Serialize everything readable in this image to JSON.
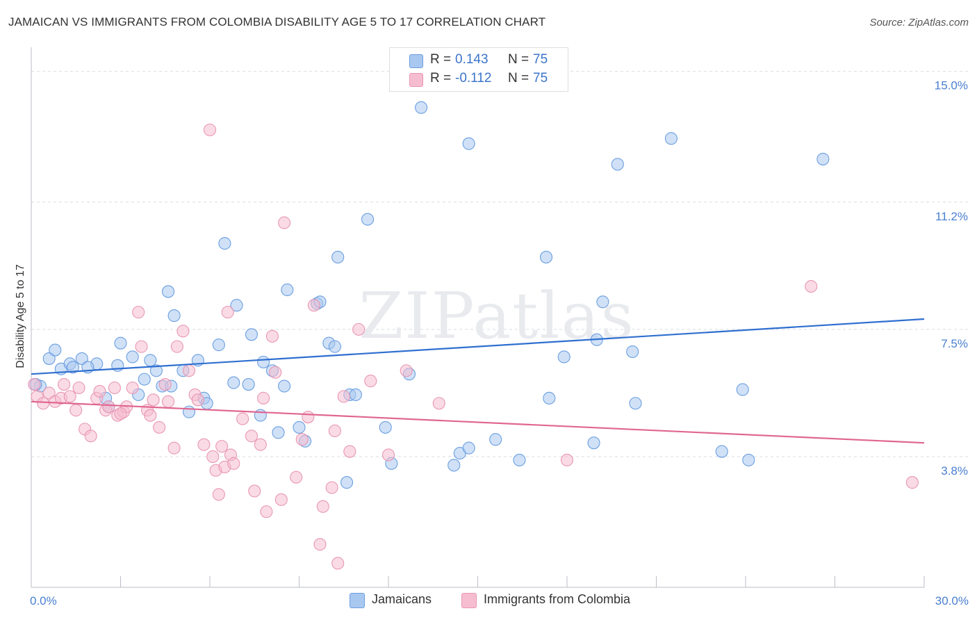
{
  "title": "JAMAICAN VS IMMIGRANTS FROM COLOMBIA DISABILITY AGE 5 TO 17 CORRELATION CHART",
  "source": "Source: ZipAtlas.com",
  "watermark": "ZIPatlas",
  "legend": {
    "rows": [
      {
        "r_label": "R =",
        "r_value": "0.143",
        "n_label": "N =",
        "n_value": "75",
        "color": "#a9c8f0",
        "border": "#6a9ee0"
      },
      {
        "r_label": "R =",
        "r_value": "-0.112",
        "n_label": "N =",
        "n_value": "75",
        "color": "#f6bdd0",
        "border": "#e896b3"
      }
    ]
  },
  "bottom_legend": [
    {
      "label": "Jamaicans",
      "color": "#a9c8f0",
      "border": "#6a9ee0"
    },
    {
      "label": "Immigrants from Colombia",
      "color": "#f6bdd0",
      "border": "#e896b3"
    }
  ],
  "chart_data": {
    "type": "scatter",
    "ylabel": "Disability Age 5 to 17",
    "xlim": [
      0,
      30
    ],
    "ylim": [
      0,
      15.5
    ],
    "x_tick_labels": [
      {
        "value": 0,
        "label": "0.0%"
      },
      {
        "value": 30,
        "label": "30.0%"
      }
    ],
    "y_tick_labels": [
      {
        "value": 15.0,
        "label": "15.0%"
      },
      {
        "value": 11.2,
        "label": "11.2%"
      },
      {
        "value": 7.5,
        "label": "7.5%"
      },
      {
        "value": 3.8,
        "label": "3.8%"
      }
    ],
    "grid": true,
    "series": [
      {
        "name": "Jamaicans",
        "color": "#6a9ee0",
        "fill": "#a9c8f0",
        "trend": {
          "x": [
            0,
            30
          ],
          "y": [
            6.2,
            7.8
          ],
          "color": "#2f6fd0"
        },
        "points": [
          [
            0.3,
            5.85
          ],
          [
            0.6,
            6.65
          ],
          [
            0.8,
            6.9
          ],
          [
            1.0,
            6.35
          ],
          [
            1.3,
            6.5
          ],
          [
            1.4,
            6.4
          ],
          [
            1.7,
            6.65
          ],
          [
            2.2,
            6.5
          ],
          [
            2.5,
            5.5
          ],
          [
            2.6,
            5.25
          ],
          [
            2.9,
            6.45
          ],
          [
            3.0,
            7.1
          ],
          [
            3.4,
            6.7
          ],
          [
            3.6,
            5.6
          ],
          [
            3.8,
            6.05
          ],
          [
            4.0,
            6.6
          ],
          [
            4.2,
            6.3
          ],
          [
            4.4,
            5.85
          ],
          [
            4.6,
            8.6
          ],
          [
            4.8,
            7.9
          ],
          [
            4.7,
            5.85
          ],
          [
            5.3,
            5.1
          ],
          [
            5.6,
            6.6
          ],
          [
            5.8,
            5.5
          ],
          [
            5.9,
            5.35
          ],
          [
            6.3,
            7.05
          ],
          [
            6.5,
            10.0
          ],
          [
            6.8,
            5.95
          ],
          [
            6.9,
            8.2
          ],
          [
            7.3,
            5.9
          ],
          [
            7.4,
            7.35
          ],
          [
            7.7,
            5.0
          ],
          [
            7.8,
            6.55
          ],
          [
            8.1,
            6.3
          ],
          [
            8.3,
            4.5
          ],
          [
            8.5,
            5.85
          ],
          [
            8.6,
            8.65
          ],
          [
            9.0,
            4.65
          ],
          [
            9.2,
            4.25
          ],
          [
            9.6,
            8.25
          ],
          [
            9.7,
            8.3
          ],
          [
            10.0,
            7.1
          ],
          [
            10.2,
            7.0
          ],
          [
            10.3,
            9.6
          ],
          [
            10.6,
            3.05
          ],
          [
            10.7,
            5.6
          ],
          [
            10.9,
            5.6
          ],
          [
            11.3,
            10.7
          ],
          [
            11.9,
            4.65
          ],
          [
            12.1,
            3.6
          ],
          [
            12.7,
            6.2
          ],
          [
            13.1,
            13.95
          ],
          [
            14.2,
            3.55
          ],
          [
            14.4,
            3.9
          ],
          [
            14.7,
            4.05
          ],
          [
            14.7,
            12.9
          ],
          [
            15.6,
            4.3
          ],
          [
            16.4,
            3.7
          ],
          [
            17.4,
            5.5
          ],
          [
            17.3,
            9.6
          ],
          [
            17.9,
            6.7
          ],
          [
            18.9,
            4.2
          ],
          [
            19.0,
            7.2
          ],
          [
            19.2,
            8.3
          ],
          [
            19.7,
            12.3
          ],
          [
            20.2,
            6.85
          ],
          [
            20.3,
            5.35
          ],
          [
            21.5,
            13.05
          ],
          [
            23.2,
            3.95
          ],
          [
            23.9,
            5.75
          ],
          [
            24.1,
            3.7
          ],
          [
            26.6,
            12.45
          ],
          [
            0.15,
            5.9
          ],
          [
            1.9,
            6.4
          ],
          [
            5.1,
            6.3
          ]
        ]
      },
      {
        "name": "Immigrants from Colombia",
        "color": "#e896b3",
        "fill": "#f6bdd0",
        "trend": {
          "x": [
            0,
            30
          ],
          "y": [
            5.4,
            4.2
          ],
          "color": "#e06690"
        },
        "points": [
          [
            0.2,
            5.55
          ],
          [
            0.4,
            5.35
          ],
          [
            0.6,
            5.65
          ],
          [
            0.8,
            5.4
          ],
          [
            1.0,
            5.5
          ],
          [
            1.1,
            5.9
          ],
          [
            1.3,
            5.55
          ],
          [
            1.5,
            5.15
          ],
          [
            1.6,
            5.8
          ],
          [
            1.8,
            4.6
          ],
          [
            2.0,
            4.4
          ],
          [
            2.2,
            5.5
          ],
          [
            2.3,
            5.7
          ],
          [
            2.5,
            5.15
          ],
          [
            2.6,
            5.25
          ],
          [
            2.8,
            5.8
          ],
          [
            2.9,
            5.0
          ],
          [
            3.1,
            5.1
          ],
          [
            3.2,
            5.25
          ],
          [
            3.4,
            5.8
          ],
          [
            3.6,
            8.0
          ],
          [
            3.7,
            7.0
          ],
          [
            3.9,
            5.15
          ],
          [
            4.0,
            5.0
          ],
          [
            4.1,
            5.45
          ],
          [
            4.3,
            4.65
          ],
          [
            4.5,
            5.9
          ],
          [
            4.6,
            5.4
          ],
          [
            4.8,
            4.05
          ],
          [
            4.9,
            7.0
          ],
          [
            5.1,
            7.45
          ],
          [
            5.3,
            6.3
          ],
          [
            5.5,
            5.6
          ],
          [
            5.6,
            5.45
          ],
          [
            5.8,
            4.15
          ],
          [
            6.0,
            13.3
          ],
          [
            6.1,
            3.8
          ],
          [
            6.2,
            3.4
          ],
          [
            6.3,
            2.7
          ],
          [
            6.4,
            4.1
          ],
          [
            6.5,
            3.5
          ],
          [
            6.6,
            8.0
          ],
          [
            6.7,
            3.85
          ],
          [
            6.8,
            3.6
          ],
          [
            7.1,
            4.9
          ],
          [
            7.4,
            4.4
          ],
          [
            7.5,
            2.8
          ],
          [
            7.7,
            4.15
          ],
          [
            7.8,
            5.5
          ],
          [
            7.9,
            2.2
          ],
          [
            8.1,
            7.3
          ],
          [
            8.2,
            6.25
          ],
          [
            8.4,
            2.55
          ],
          [
            8.5,
            10.6
          ],
          [
            8.9,
            3.2
          ],
          [
            9.1,
            4.3
          ],
          [
            9.3,
            4.95
          ],
          [
            9.5,
            8.2
          ],
          [
            9.7,
            1.25
          ],
          [
            9.8,
            2.35
          ],
          [
            10.1,
            2.9
          ],
          [
            10.2,
            4.55
          ],
          [
            10.3,
            0.7
          ],
          [
            10.5,
            5.55
          ],
          [
            10.7,
            3.95
          ],
          [
            11.0,
            7.5
          ],
          [
            11.4,
            6.0
          ],
          [
            12.0,
            3.85
          ],
          [
            12.6,
            6.3
          ],
          [
            13.7,
            5.35
          ],
          [
            18.0,
            3.7
          ],
          [
            26.2,
            8.75
          ],
          [
            29.6,
            3.05
          ],
          [
            0.1,
            5.9
          ],
          [
            3.0,
            5.05
          ]
        ]
      }
    ]
  }
}
